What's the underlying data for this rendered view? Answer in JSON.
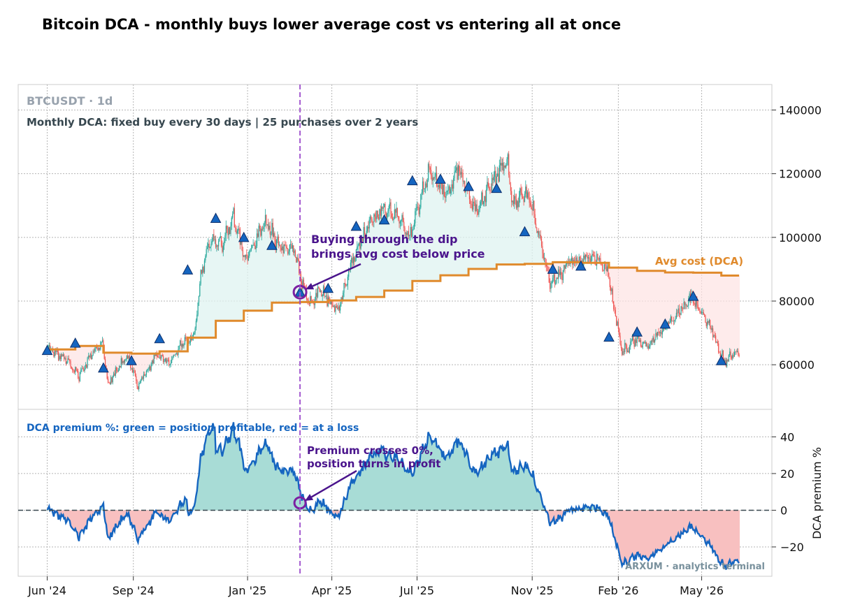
{
  "chart_data": {
    "title": "Bitcoin DCA - monthly buys lower average cost vs entering all at once",
    "symbol_label": "BTCUSDT · 1d",
    "subtitle": "Monthly DCA: fixed buy every 30 days  |  25 purchases over 2 years",
    "watermark": "ARXUM · analytics terminal",
    "colors": {
      "up_candle": "#26a69a",
      "down_candle": "#ef5350",
      "avg_cost": "#e08a2c",
      "buy_marker": "#1565c0",
      "premium_line": "#1565c0",
      "profit_fill": "#a8dcd6",
      "loss_fill": "#f8c0c0",
      "annotation": "#4a148c",
      "event_line": "#9c4dcc"
    },
    "x_axis": {
      "ticks": [
        "Jun '24",
        "Sep '24",
        "Jan '25",
        "Apr '25",
        "Jul '25",
        "Nov '25",
        "Feb '26",
        "May '26"
      ],
      "tick_dates": [
        "2024-06-01",
        "2024-09-01",
        "2025-01-01",
        "2025-04-01",
        "2025-07-01",
        "2025-11-01",
        "2026-02-01",
        "2026-05-01"
      ],
      "start": "2024-06-01",
      "end": "2026-06-10",
      "range": [
        "2024-05-01",
        "2026-07-15"
      ]
    },
    "price_panel": {
      "type": "candlestick",
      "ylim": [
        46000,
        148000
      ],
      "yticks": [
        60000,
        80000,
        100000,
        120000,
        140000
      ],
      "price_anchors": [
        [
          "2024-06-01",
          65000
        ],
        [
          "2024-06-20",
          62000
        ],
        [
          "2024-07-05",
          56500
        ],
        [
          "2024-07-20",
          64000
        ],
        [
          "2024-07-30",
          67000
        ],
        [
          "2024-08-05",
          54000
        ],
        [
          "2024-08-25",
          63000
        ],
        [
          "2024-09-06",
          53500
        ],
        [
          "2024-09-25",
          63000
        ],
        [
          "2024-10-10",
          60500
        ],
        [
          "2024-10-25",
          67500
        ],
        [
          "2024-11-05",
          69000
        ],
        [
          "2024-11-12",
          88000
        ],
        [
          "2024-11-22",
          99000
        ],
        [
          "2024-12-05",
          98000
        ],
        [
          "2024-12-17",
          106000
        ],
        [
          "2024-12-30",
          93000
        ],
        [
          "2025-01-20",
          105000
        ],
        [
          "2025-02-05",
          97000
        ],
        [
          "2025-02-20",
          96000
        ],
        [
          "2025-03-01",
          85000
        ],
        [
          "2025-03-10",
          79000
        ],
        [
          "2025-03-20",
          84000
        ],
        [
          "2025-04-07",
          76000
        ],
        [
          "2025-04-22",
          92000
        ],
        [
          "2025-05-10",
          104000
        ],
        [
          "2025-05-25",
          109000
        ],
        [
          "2025-06-10",
          107000
        ],
        [
          "2025-06-22",
          100000
        ],
        [
          "2025-07-14",
          121000
        ],
        [
          "2025-08-01",
          113000
        ],
        [
          "2025-08-14",
          122000
        ],
        [
          "2025-09-01",
          108000
        ],
        [
          "2025-09-18",
          117000
        ],
        [
          "2025-10-06",
          124000
        ],
        [
          "2025-10-11",
          110000
        ],
        [
          "2025-10-28",
          114000
        ],
        [
          "2025-11-21",
          85000
        ],
        [
          "2025-12-10",
          92000
        ],
        [
          "2026-01-05",
          94000
        ],
        [
          "2026-01-20",
          90000
        ],
        [
          "2026-02-05",
          64000
        ],
        [
          "2026-02-20",
          68000
        ],
        [
          "2026-03-05",
          66000
        ],
        [
          "2026-04-01",
          75000
        ],
        [
          "2026-04-20",
          81000
        ],
        [
          "2026-05-10",
          72000
        ],
        [
          "2026-05-25",
          61000
        ],
        [
          "2026-06-10",
          64000
        ]
      ],
      "buy_markers": [
        [
          "2024-06-01",
          64500
        ],
        [
          "2024-07-01",
          66800
        ],
        [
          "2024-07-31",
          59000
        ],
        [
          "2024-08-30",
          61300
        ],
        [
          "2024-09-29",
          68200
        ],
        [
          "2024-10-29",
          89800
        ],
        [
          "2024-11-28",
          106000
        ],
        [
          "2024-12-28",
          100000
        ],
        [
          "2025-01-27",
          97500
        ],
        [
          "2025-02-26",
          82800
        ],
        [
          "2025-03-28",
          84000
        ],
        [
          "2025-04-27",
          103500
        ],
        [
          "2025-05-27",
          105500
        ],
        [
          "2025-06-26",
          117800
        ],
        [
          "2025-07-26",
          118300
        ],
        [
          "2025-08-25",
          116000
        ],
        [
          "2025-09-24",
          115400
        ],
        [
          "2025-10-24",
          101800
        ],
        [
          "2025-11-23",
          90000
        ],
        [
          "2025-12-23",
          91000
        ],
        [
          "2026-01-22",
          68700
        ],
        [
          "2026-02-21",
          70300
        ],
        [
          "2026-03-23",
          72800
        ],
        [
          "2026-04-22",
          81500
        ],
        [
          "2026-05-22",
          61300
        ]
      ],
      "avg_cost_steps": [
        64800,
        65900,
        63800,
        63500,
        64200,
        68500,
        73800,
        77000,
        79500,
        79700,
        80200,
        81300,
        83300,
        86300,
        88100,
        90100,
        91500,
        91700,
        92200,
        92000,
        90500,
        89500,
        89000,
        88900,
        88000
      ],
      "avg_cost_label": "Avg cost (DCA)",
      "event": {
        "date": "2025-02-26",
        "value": 82800,
        "text_line1": "Buying through the dip",
        "text_line2": "brings avg cost below price"
      }
    },
    "premium_panel": {
      "type": "area",
      "ylabel": "DCA premium %",
      "ylim": [
        -36,
        55
      ],
      "yticks": [
        -20,
        0,
        20,
        40
      ],
      "legend_text": "DCA premium %: green = position profitable, red = at a loss",
      "event": {
        "date": "2025-02-26",
        "value": 4,
        "text_line1": "Premium crosses 0%,",
        "text_line2": "position turns in profit"
      }
    }
  }
}
